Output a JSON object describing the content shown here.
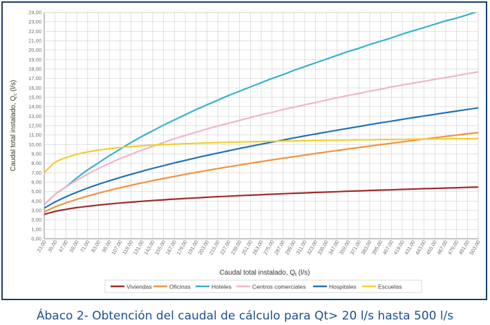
{
  "caption": "Ábaco 2- Obtención del caudal de cálculo para Qt> 20 l/s hasta 500 l/s",
  "chart_data": {
    "type": "line",
    "xlabel": "Caudal total instalado, Q",
    "xlabel_sub": "t",
    "xlabel_unit": " (l/s)",
    "ylabel": "Caudal total instalado, Q",
    "ylabel_sub": "c",
    "ylabel_unit": " (l/s)",
    "ylim": [
      0,
      24
    ],
    "y_ticks": [
      "0,00",
      "1,00",
      "2,00",
      "3,00",
      "4,00",
      "5,00",
      "6,00",
      "7,00",
      "8,00",
      "9,00",
      "10,00",
      "11,00",
      "12,00",
      "13,00",
      "14,00",
      "15,00",
      "16,00",
      "17,00",
      "18,00",
      "19,00",
      "20,00",
      "21,00",
      "22,00",
      "23,00",
      "24,00"
    ],
    "xlim": [
      23,
      503
    ],
    "x_ticks": [
      "23,00",
      "35,00",
      "47,00",
      "59,00",
      "71,00",
      "83,00",
      "95,00",
      "107,00",
      "119,00",
      "131,00",
      "143,00",
      "155,00",
      "167,00",
      "179,00",
      "191,00",
      "203,00",
      "215,00",
      "227,00",
      "239,00",
      "251,00",
      "263,00",
      "275,00",
      "287,00",
      "299,00",
      "311,00",
      "323,00",
      "335,00",
      "347,00",
      "359,00",
      "371,00",
      "383,00",
      "395,00",
      "407,00",
      "419,00",
      "431,00",
      "443,00",
      "455,00",
      "467,00",
      "479,00",
      "491,00",
      "503,00"
    ],
    "grid": true,
    "legend_position": "bottom",
    "x": [
      23,
      35,
      47,
      59,
      71,
      83,
      95,
      107,
      119,
      131,
      143,
      155,
      167,
      179,
      191,
      203,
      215,
      227,
      239,
      251,
      263,
      275,
      287,
      299,
      311,
      323,
      335,
      347,
      359,
      371,
      383,
      395,
      407,
      419,
      431,
      443,
      455,
      467,
      479,
      491,
      503
    ],
    "series": [
      {
        "name": "Viviendas",
        "color": "#a02a2a",
        "values": [
          2.58,
          2.9,
          3.12,
          3.3,
          3.44,
          3.57,
          3.69,
          3.79,
          3.88,
          3.97,
          4.05,
          4.13,
          4.2,
          4.27,
          4.33,
          4.4,
          4.46,
          4.51,
          4.57,
          4.62,
          4.67,
          4.72,
          4.77,
          4.82,
          4.86,
          4.91,
          4.95,
          4.99,
          5.04,
          5.08,
          5.12,
          5.16,
          5.19,
          5.23,
          5.27,
          5.31,
          5.34,
          5.38,
          5.41,
          5.45,
          5.48
        ]
      },
      {
        "name": "Oficinas",
        "color": "#f0923e",
        "values": [
          2.85,
          3.37,
          3.8,
          4.18,
          4.52,
          4.84,
          5.13,
          5.41,
          5.67,
          5.92,
          6.16,
          6.39,
          6.61,
          6.83,
          7.04,
          7.24,
          7.44,
          7.63,
          7.82,
          8.0,
          8.18,
          8.36,
          8.53,
          8.7,
          8.87,
          9.04,
          9.2,
          9.36,
          9.52,
          9.67,
          9.83,
          9.98,
          10.13,
          10.28,
          10.42,
          10.57,
          10.71,
          10.85,
          10.99,
          11.13,
          11.26
        ]
      },
      {
        "name": "Hoteles",
        "color": "#35b1d2",
        "values": [
          3.6,
          4.7,
          5.5,
          6.45,
          7.3,
          8.05,
          8.8,
          9.5,
          10.2,
          10.85,
          11.45,
          12.05,
          12.6,
          13.15,
          13.7,
          14.2,
          14.7,
          15.2,
          15.65,
          16.1,
          16.55,
          17.0,
          17.4,
          17.85,
          18.25,
          18.65,
          19.05,
          19.45,
          19.85,
          20.2,
          20.6,
          20.95,
          21.3,
          21.7,
          22.05,
          22.4,
          22.75,
          23.1,
          23.4,
          23.75,
          24.1
        ]
      },
      {
        "name": "Centros comerciales",
        "color": "#f2b3c8",
        "values": [
          3.6,
          4.7,
          5.5,
          6.2,
          6.85,
          7.45,
          8.0,
          8.5,
          8.95,
          9.4,
          9.8,
          10.2,
          10.6,
          10.95,
          11.3,
          11.65,
          11.95,
          12.25,
          12.55,
          12.85,
          13.15,
          13.4,
          13.7,
          13.95,
          14.2,
          14.45,
          14.7,
          14.95,
          15.2,
          15.4,
          15.65,
          15.85,
          16.1,
          16.3,
          16.5,
          16.7,
          16.9,
          17.1,
          17.3,
          17.5,
          17.7
        ]
      },
      {
        "name": "Hospitales",
        "color": "#1f71b8",
        "values": [
          3.25,
          3.9,
          4.45,
          4.93,
          5.37,
          5.77,
          6.14,
          6.5,
          6.83,
          7.15,
          7.46,
          7.75,
          8.04,
          8.31,
          8.58,
          8.84,
          9.09,
          9.33,
          9.57,
          9.8,
          10.03,
          10.25,
          10.47,
          10.69,
          10.9,
          11.11,
          11.31,
          11.51,
          11.71,
          11.9,
          12.1,
          12.29,
          12.47,
          12.66,
          12.84,
          13.02,
          13.19,
          13.37,
          13.54,
          13.71,
          13.88
        ]
      },
      {
        "name": "Escuelas",
        "color": "#f4cd2a",
        "values": [
          7.0,
          8.1,
          8.6,
          8.95,
          9.2,
          9.4,
          9.55,
          9.67,
          9.77,
          9.85,
          9.92,
          9.98,
          10.03,
          10.08,
          10.12,
          10.16,
          10.2,
          10.23,
          10.26,
          10.29,
          10.31,
          10.34,
          10.36,
          10.38,
          10.4,
          10.42,
          10.44,
          10.45,
          10.47,
          10.49,
          10.5,
          10.52,
          10.53,
          10.54,
          10.56,
          10.57,
          10.58,
          10.59,
          10.6,
          10.61,
          10.62
        ]
      }
    ]
  }
}
